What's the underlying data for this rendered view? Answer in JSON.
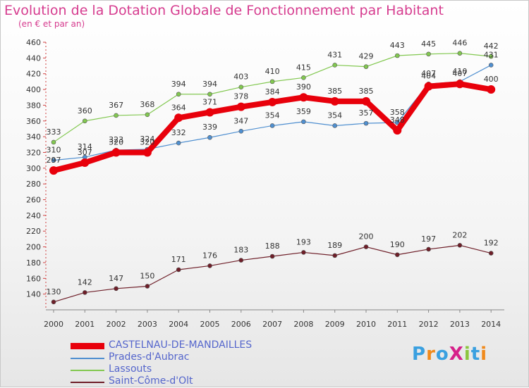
{
  "header": {
    "title": "Evolution de la Dotation Globale de Fonctionnement par Habitant",
    "subtitle": "(en € et par an)"
  },
  "logo": {
    "text": "ProXiti",
    "colors": [
      "#3aa0e0",
      "#f08a1c",
      "#3aa0e0",
      "#d6218a",
      "#8cc63f",
      "#3aa0e0",
      "#f08a1c"
    ]
  },
  "chart_data": {
    "type": "line",
    "title": "Evolution de la Dotation Globale de Fonctionnement par Habitant",
    "subtitle": "(en € et par an)",
    "x": [
      "2000",
      "2001",
      "2002",
      "2003",
      "2004",
      "2005",
      "2006",
      "2007",
      "2008",
      "2009",
      "2010",
      "2011",
      "2012",
      "2013",
      "2014"
    ],
    "ylim": [
      120,
      460
    ],
    "yticks": [
      140,
      160,
      180,
      200,
      220,
      240,
      260,
      280,
      300,
      320,
      340,
      360,
      380,
      400,
      420,
      440,
      460
    ],
    "grid": false,
    "legend_position": "bottom-left",
    "series": [
      {
        "name": "CASTELNAU-DE-MANDAILLES",
        "color": "#e8000b",
        "values": [
          297,
          307,
          320,
          320,
          364,
          371,
          378,
          384,
          390,
          385,
          385,
          348,
          404,
          407,
          400
        ],
        "labels": [
          "297",
          "307",
          "320",
          "320",
          "364",
          "371",
          "378",
          "384",
          "390",
          "385",
          "385",
          "348",
          "404",
          "407",
          "400"
        ]
      },
      {
        "name": "Prades-d'Aubrac",
        "color": "#4f8fd0",
        "values": [
          310,
          314,
          323,
          324,
          332,
          339,
          347,
          354,
          359,
          354,
          357,
          358,
          407,
          410,
          431
        ],
        "labels": [
          "310",
          "314",
          "323",
          "324",
          "332",
          "339",
          "347",
          "354",
          "359",
          "354",
          "357",
          "358",
          "407",
          "410",
          "431"
        ]
      },
      {
        "name": "Lassouts",
        "color": "#82c850",
        "values": [
          333,
          360,
          367,
          368,
          394,
          394,
          403,
          410,
          415,
          431,
          429,
          443,
          445,
          446,
          442
        ],
        "labels": [
          "333",
          "360",
          "367",
          "368",
          "394",
          "394",
          "403",
          "410",
          "415",
          "431",
          "429",
          "443",
          "445",
          "446",
          "442"
        ]
      },
      {
        "name": "Saint-Côme-d'Olt",
        "color": "#6e1e28",
        "values": [
          130,
          142,
          147,
          150,
          171,
          176,
          183,
          188,
          193,
          189,
          200,
          190,
          197,
          202,
          192
        ],
        "labels": [
          "130",
          "142",
          "147",
          "150",
          "171",
          "176",
          "183",
          "188",
          "193",
          "189",
          "200",
          "190",
          "197",
          "202",
          "192"
        ]
      }
    ]
  }
}
